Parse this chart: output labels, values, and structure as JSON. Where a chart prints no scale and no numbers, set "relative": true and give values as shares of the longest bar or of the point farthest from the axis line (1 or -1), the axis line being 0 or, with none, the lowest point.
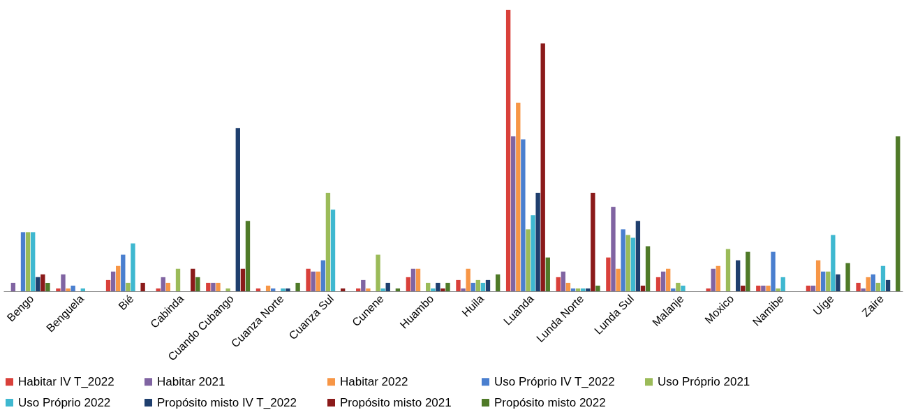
{
  "chart_data": {
    "type": "bar",
    "relative": true,
    "legend": "bottom",
    "grid": false,
    "categories": [
      "Bengo",
      "Benguela",
      "Bié",
      "Cabinda",
      "Cuando Cubango",
      "Cuanza Norte",
      "Cuanza Sul",
      "Cunene",
      "Huambo",
      "Huila",
      "Luanda",
      "Lunda Norte",
      "Lunda Sul",
      "Malanje",
      "Moxico",
      "Namibe",
      "Uíge",
      "Zaire"
    ],
    "series": [
      {
        "name": "Habitar IV T_2022",
        "color": "#d9403a",
        "values": [
          0,
          0.01,
          0.04,
          0.01,
          0.03,
          0.01,
          0.08,
          0.01,
          0.05,
          0.04,
          1,
          0.05,
          0.12,
          0.05,
          0.01,
          0.02,
          0.02,
          0.03
        ]
      },
      {
        "name": "Habitar 2021",
        "color": "#8064a2",
        "values": [
          0.03,
          0.06,
          0.07,
          0.05,
          0.03,
          0,
          0.07,
          0.04,
          0.08,
          0.01,
          0.55,
          0.07,
          0.3,
          0.07,
          0.08,
          0.02,
          0.02,
          0.01
        ]
      },
      {
        "name": "Habitar 2022",
        "color": "#f79646",
        "values": [
          0,
          0.01,
          0.09,
          0.03,
          0.03,
          0.02,
          0.07,
          0.01,
          0.08,
          0.08,
          0.67,
          0.03,
          0.08,
          0.08,
          0.09,
          0.02,
          0.11,
          0.05
        ]
      },
      {
        "name": "Uso Próprio IV T_2022",
        "color": "#4a7fcf",
        "values": [
          0.21,
          0.02,
          0.13,
          0,
          0,
          0.01,
          0.11,
          0,
          0,
          0.03,
          0.54,
          0.01,
          0.22,
          0.01,
          0,
          0.14,
          0.07,
          0.06
        ]
      },
      {
        "name": "Uso Próprio 2021",
        "color": "#9bbb59",
        "values": [
          0.21,
          0,
          0.03,
          0.08,
          0.01,
          0,
          0.35,
          0.13,
          0.03,
          0.04,
          0.22,
          0.01,
          0.2,
          0.03,
          0.15,
          0.01,
          0.07,
          0.03
        ]
      },
      {
        "name": "Uso Próprio 2022",
        "color": "#3fb8d0",
        "values": [
          0.21,
          0.01,
          0.17,
          0,
          0,
          0.01,
          0.29,
          0.01,
          0.01,
          0.03,
          0.27,
          0.01,
          0.19,
          0.02,
          0,
          0.05,
          0.2,
          0.09
        ]
      },
      {
        "name": "Propósito misto IV T_2022",
        "color": "#1f3f6e",
        "values": [
          0.05,
          0,
          0,
          0,
          0.58,
          0.01,
          0,
          0.03,
          0.03,
          0.04,
          0.35,
          0.01,
          0.25,
          0,
          0.11,
          0,
          0.06,
          0.04
        ]
      },
      {
        "name": "Propósito misto 2021",
        "color": "#8b1a1a",
        "values": [
          0.06,
          0,
          0.03,
          0.08,
          0.08,
          0,
          0.01,
          0,
          0.01,
          0,
          0.88,
          0.35,
          0.02,
          0,
          0.02,
          0,
          0,
          0
        ]
      },
      {
        "name": "Propósito misto 2022",
        "color": "#4f7a28",
        "values": [
          0.03,
          0,
          0,
          0.05,
          0.25,
          0.03,
          0,
          0.01,
          0.03,
          0.06,
          0.12,
          0.02,
          0.16,
          0,
          0.14,
          0,
          0.1,
          0.55
        ]
      }
    ]
  }
}
